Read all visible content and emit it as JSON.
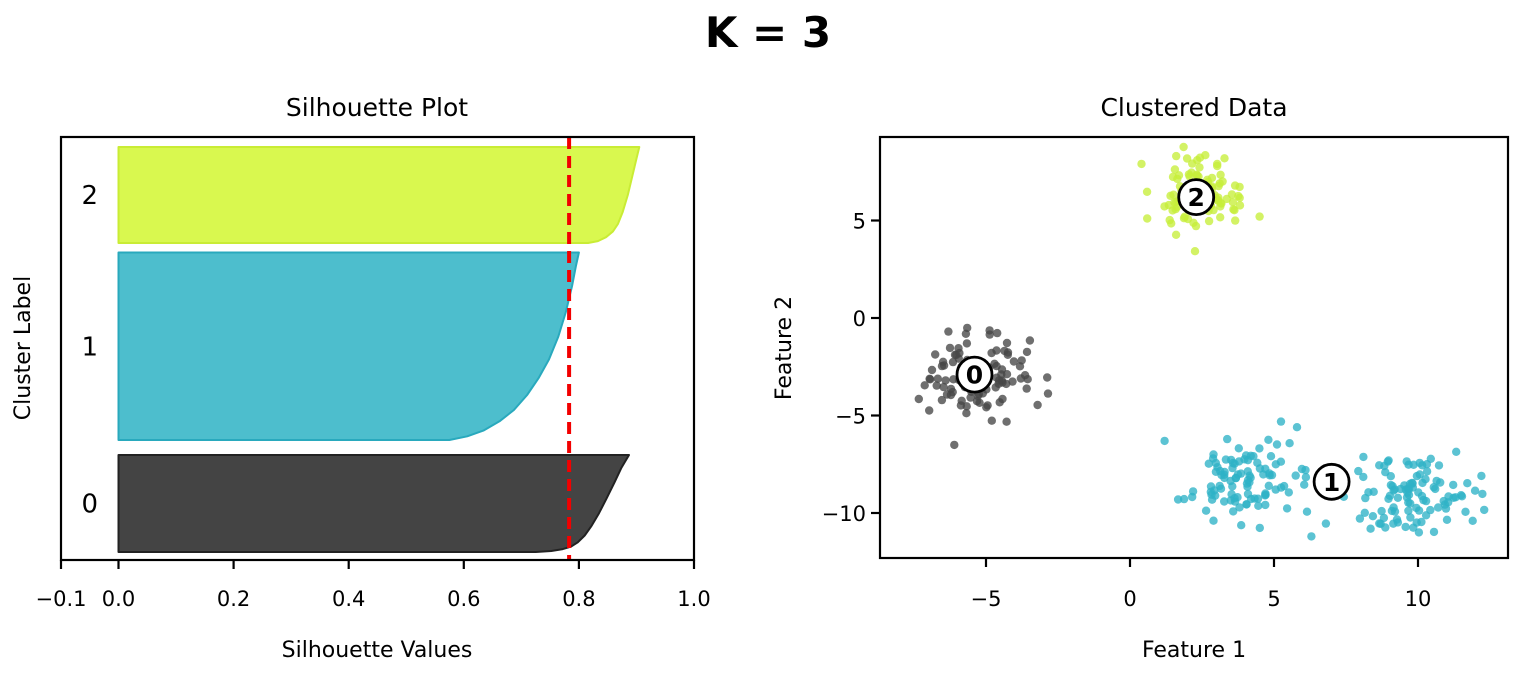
{
  "figure": {
    "title": "K = 3",
    "background": "#ffffff"
  },
  "palette": {
    "c0_fill": "#444444",
    "c0_edge": "#222222",
    "c0_point": "#474747",
    "c1_fill": "#4dbecd",
    "c1_edge": "#29a9bd",
    "c1_point": "#2eb2c6",
    "c2_fill": "#d9f84f",
    "c2_edge": "#c9ec35",
    "c2_point": "#c6ee3a",
    "avg_line": "#f20000",
    "axis": "#000000",
    "label_circle_fill": "#ffffff",
    "label_circle_edge": "#000000"
  },
  "chart_data": [
    {
      "type": "area",
      "id": "silhouette-plot",
      "title": "Silhouette Plot",
      "xlabel": "Silhouette Values",
      "ylabel": "Cluster Label",
      "xlim": [
        -0.1,
        1.0
      ],
      "xticks": [
        -0.1,
        0.0,
        0.2,
        0.4,
        0.6,
        0.8,
        1.0
      ],
      "xtick_labels": [
        "−0.1",
        "0.0",
        "0.2",
        "0.4",
        "0.6",
        "0.8",
        "1.0"
      ],
      "average_silhouette": 0.783,
      "avg_line_style": "dashed",
      "grid": false,
      "clusters": [
        {
          "label": "2",
          "size": 100,
          "sil_max": 0.905,
          "sil_min": 0.816,
          "profile": [
            [
              0,
              0.905
            ],
            [
              0.12,
              0.9
            ],
            [
              0.3,
              0.893
            ],
            [
              0.5,
              0.885
            ],
            [
              0.68,
              0.876
            ],
            [
              0.8,
              0.868
            ],
            [
              0.88,
              0.859
            ],
            [
              0.94,
              0.847
            ],
            [
              0.98,
              0.833
            ],
            [
              1,
              0.816
            ]
          ]
        },
        {
          "label": "1",
          "size": 200,
          "sil_max": 0.8,
          "sil_min": 0.575,
          "profile": [
            [
              0,
              0.8
            ],
            [
              0.07,
              0.795
            ],
            [
              0.18,
              0.788
            ],
            [
              0.32,
              0.777
            ],
            [
              0.45,
              0.764
            ],
            [
              0.57,
              0.748
            ],
            [
              0.67,
              0.73
            ],
            [
              0.76,
              0.71
            ],
            [
              0.84,
              0.687
            ],
            [
              0.9,
              0.662
            ],
            [
              0.95,
              0.634
            ],
            [
              0.98,
              0.606
            ],
            [
              1,
              0.575
            ]
          ]
        },
        {
          "label": "0",
          "size": 100,
          "sil_max": 0.887,
          "sil_min": 0.725,
          "profile": [
            [
              0,
              0.887
            ],
            [
              0.13,
              0.874
            ],
            [
              0.28,
              0.862
            ],
            [
              0.45,
              0.848
            ],
            [
              0.6,
              0.835
            ],
            [
              0.73,
              0.822
            ],
            [
              0.83,
              0.81
            ],
            [
              0.9,
              0.798
            ],
            [
              0.945,
              0.786
            ],
            [
              0.97,
              0.772
            ],
            [
              0.99,
              0.752
            ],
            [
              1,
              0.725
            ]
          ]
        }
      ]
    },
    {
      "type": "scatter",
      "id": "clustered-data-plot",
      "title": "Clustered Data",
      "xlabel": "Feature 1",
      "ylabel": "Feature 2",
      "xlim": [
        -8.7,
        13.1
      ],
      "ylim": [
        -12.3,
        9.3
      ],
      "xticks": [
        -5,
        0,
        5,
        10
      ],
      "xtick_labels": [
        "−5",
        "0",
        "5",
        "10"
      ],
      "yticks": [
        5,
        0,
        -5,
        -10
      ],
      "ytick_labels": [
        "5",
        "0",
        "−5",
        "−10"
      ],
      "grid": false,
      "clusters": [
        {
          "label": "0",
          "center": [
            -5.4,
            -2.9
          ],
          "n_points": 100,
          "blobs": [
            {
              "cx": -5.4,
              "cy": -2.9,
              "sx": 1.05,
              "sy": 1.1,
              "n": 100
            }
          ],
          "extra_points": []
        },
        {
          "label": "1",
          "center": [
            7.0,
            -8.4
          ],
          "n_points": 206,
          "blobs": [
            {
              "cx": 4.05,
              "cy": -8.2,
              "sx": 1.05,
              "sy": 1.0,
              "n": 100
            },
            {
              "cx": 9.8,
              "cy": -9.1,
              "sx": 1.1,
              "sy": 1.0,
              "n": 100
            }
          ],
          "extra_points": [
            [
              1.2,
              -6.3
            ],
            [
              5.8,
              -5.6
            ],
            [
              6.3,
              -11.2
            ],
            [
              12.2,
              -8.1
            ],
            [
              11.9,
              -10.4
            ],
            [
              2.9,
              -7.0
            ]
          ]
        },
        {
          "label": "2",
          "center": [
            2.3,
            6.2
          ],
          "n_points": 102,
          "blobs": [
            {
              "cx": 2.3,
              "cy": 6.2,
              "sx": 0.8,
              "sy": 0.95,
              "n": 100
            }
          ],
          "extra_points": [
            [
              4.5,
              5.2
            ],
            [
              0.4,
              7.9
            ]
          ]
        }
      ]
    }
  ]
}
